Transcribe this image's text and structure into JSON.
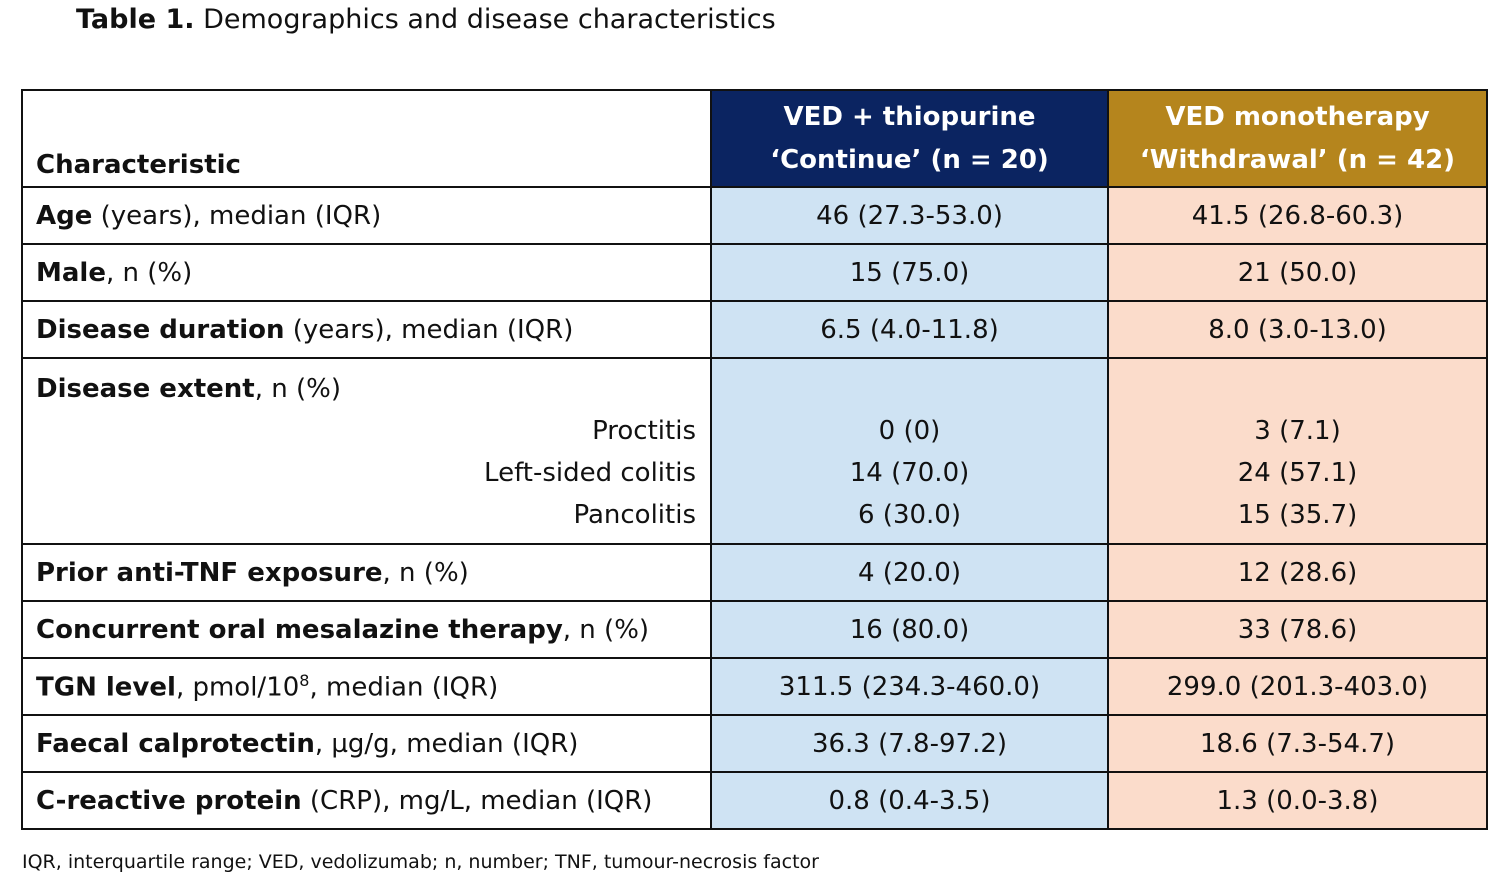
{
  "title": {
    "label": "Table 1.",
    "text": "Demographics and disease characteristics"
  },
  "header": {
    "characteristic": "Characteristic",
    "group1_line1": "VED + thiopurine",
    "group1_line2": "‘Continue’ (n = 20)",
    "group2_line1": "VED monotherapy",
    "group2_line2": "‘Withdrawal’ (n = 42)"
  },
  "rows": {
    "age": {
      "bold": "Age",
      "rest": " (years), median (IQR)",
      "g1": "46 (27.3-53.0)",
      "g2": "41.5 (26.8-60.3)"
    },
    "male": {
      "bold": "Male",
      "rest": ", n (%)",
      "g1": "15 (75.0)",
      "g2": "21 (50.0)"
    },
    "duration": {
      "bold": "Disease duration",
      "rest": " (years), median (IQR)",
      "g1": "6.5 (4.0-11.8)",
      "g2": "8.0 (3.0-13.0)"
    },
    "extent": {
      "bold": "Disease extent",
      "rest": ", n (%)",
      "proctitis": {
        "label": "Proctitis",
        "g1": "0 (0)",
        "g2": "3 (7.1)"
      },
      "left": {
        "label": "Left-sided colitis",
        "g1": "14 (70.0)",
        "g2": "24 (57.1)"
      },
      "pan": {
        "label": "Pancolitis",
        "g1": "6 (30.0)",
        "g2": "15 (35.7)"
      }
    },
    "antitnf": {
      "bold": "Prior anti-TNF exposure",
      "rest": ", n (%)",
      "g1": "4 (20.0)",
      "g2": "12 (28.6)"
    },
    "mesalazine": {
      "bold": "Concurrent oral mesalazine therapy",
      "rest": ", n (%)",
      "g1": "16 (80.0)",
      "g2": "33 (78.6)"
    },
    "tgn": {
      "bold": "TGN level",
      "rest_pre": ", pmol/10",
      "sup": "8",
      "rest_post": ", median (IQR)",
      "g1": "311.5 (234.3-460.0)",
      "g2": "299.0 (201.3-403.0)"
    },
    "calpro": {
      "bold": "Faecal calprotectin",
      "rest": ", µg/g, median (IQR)",
      "g1": "36.3 (7.8-97.2)",
      "g2": "18.6 (7.3-54.7)"
    },
    "crp": {
      "bold": "C-reactive protein",
      "rest": " (CRP), mg/L, median (IQR)",
      "g1": "0.8 (0.4-3.5)",
      "g2": "1.3 (0.0-3.8)"
    }
  },
  "footnote": "IQR, interquartile range; VED, vedolizumab; n, number; TNF, tumour-necrosis factor",
  "colors": {
    "group1_header": "#0b2461",
    "group2_header": "#b5851d",
    "group1_cells": "#cfe3f3",
    "group2_cells": "#fbdccb"
  }
}
